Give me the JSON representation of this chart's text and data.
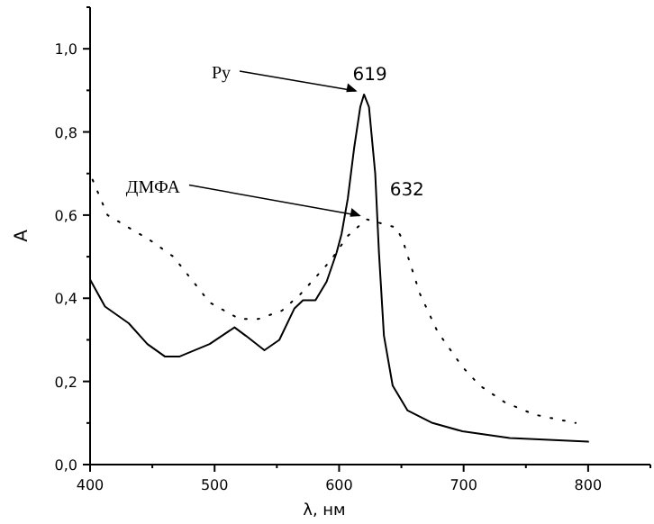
{
  "chart_data": {
    "type": "line",
    "xlabel": "λ, нм",
    "ylabel": "А",
    "xlim": [
      400,
      850
    ],
    "ylim": [
      0,
      1.1
    ],
    "xticks": [
      400,
      {
        "value": 450,
        "label": null
      },
      500,
      {
        "value": 550,
        "label": null
      },
      600,
      {
        "value": 650,
        "label": null
      },
      700,
      {
        "value": 750,
        "label": null
      },
      800,
      {
        "value": 850,
        "label": null
      }
    ],
    "yticks": [
      {
        "value": 0,
        "label": "0,0"
      },
      {
        "value": 0.1,
        "label": null
      },
      {
        "value": 0.2,
        "label": "0,2"
      },
      {
        "value": 0.3,
        "label": null
      },
      {
        "value": 0.4,
        "label": "0,4"
      },
      {
        "value": 0.5,
        "label": null
      },
      {
        "value": 0.6,
        "label": "0,6"
      },
      {
        "value": 0.7,
        "label": null
      },
      {
        "value": 0.8,
        "label": "0,8"
      },
      {
        "value": 0.9,
        "label": null
      },
      {
        "value": 1.0,
        "label": "1,0"
      },
      {
        "value": 1.1,
        "label": null
      }
    ],
    "grid": false,
    "series": [
      {
        "color": "#000000",
        "line_style": "solid",
        "x": [
          400,
          412,
          431,
          446,
          460,
          472,
          496,
          516,
          525,
          540,
          552,
          564,
          571,
          581,
          590,
          598,
          602,
          607,
          612,
          617,
          620,
          624,
          629,
          632,
          636,
          643,
          655,
          675,
          699,
          737,
          800
        ],
        "values": [
          0.445,
          0.38,
          0.34,
          0.29,
          0.26,
          0.26,
          0.29,
          0.33,
          0.31,
          0.275,
          0.3,
          0.375,
          0.395,
          0.395,
          0.44,
          0.51,
          0.555,
          0.64,
          0.76,
          0.86,
          0.89,
          0.86,
          0.7,
          0.51,
          0.31,
          0.19,
          0.13,
          0.1,
          0.08,
          0.064,
          0.055
        ]
      },
      {
        "color": "#000000",
        "line_style": "dotted",
        "x": [
          402,
          414,
          448,
          467,
          496,
          520,
          535,
          554,
          569,
          593,
          607,
          622,
          646,
          651,
          665,
          679,
          699,
          713,
          733,
          757,
          790
        ],
        "values": [
          0.685,
          0.6,
          0.54,
          0.5,
          0.39,
          0.35,
          0.35,
          0.37,
          0.41,
          0.49,
          0.55,
          0.59,
          0.57,
          0.54,
          0.41,
          0.32,
          0.235,
          0.19,
          0.15,
          0.12,
          0.1
        ]
      }
    ],
    "annotations": [
      {
        "text": "Py",
        "x": 619,
        "y": 0.89
      },
      {
        "text": "619",
        "x": 619,
        "y": 0.89
      },
      {
        "text": "ДМФА",
        "x": 622,
        "y": 0.59
      },
      {
        "text": "632",
        "x": 632,
        "y": 0.66
      }
    ]
  }
}
